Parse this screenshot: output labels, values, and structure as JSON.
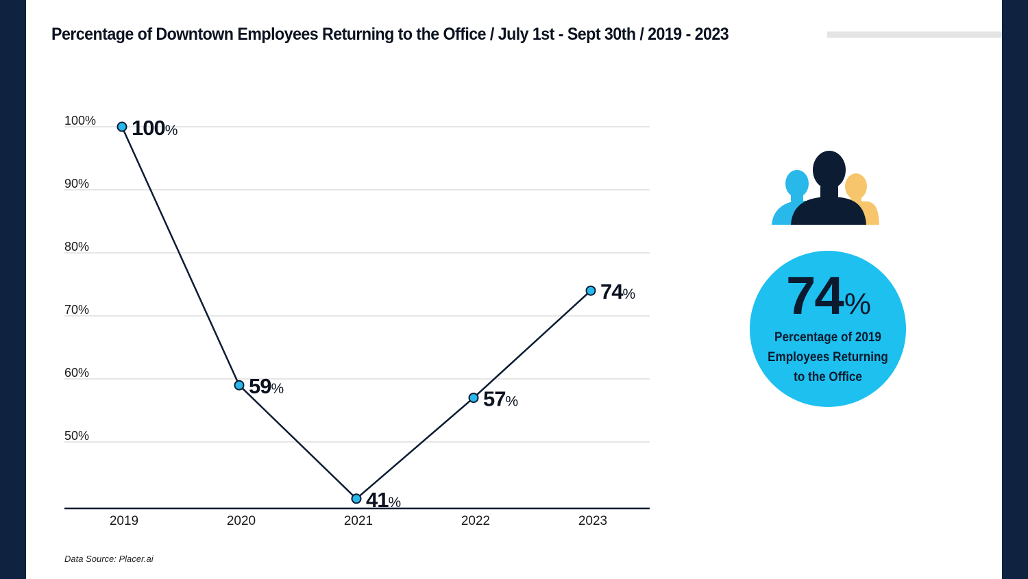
{
  "title": "Percentage of Downtown Employees Returning to the Office / July 1st - Sept 30th / 2019 - 2023",
  "source": "Data Source: Placer.ai",
  "chart_data": {
    "type": "line",
    "categories": [
      "2019",
      "2020",
      "2021",
      "2022",
      "2023"
    ],
    "series": [
      {
        "values": [
          100,
          59,
          41,
          57,
          74
        ]
      }
    ],
    "data_labels": [
      "100",
      "59",
      "41",
      "57",
      "74"
    ],
    "data_label_suffix": "%",
    "y_ticks": [
      "100%",
      "90%",
      "80%",
      "70%",
      "60%",
      "50%"
    ],
    "y_tick_values": [
      100,
      90,
      80,
      70,
      60,
      50
    ],
    "ylim": [
      39.5,
      100
    ],
    "grid": true,
    "colors": {
      "line": "#0c1c33",
      "marker": "#29b8ea",
      "grid": "#cccccc",
      "axis": "#0c1c33"
    }
  },
  "stat": {
    "value": "74",
    "unit": "%",
    "caption_lines": [
      "Percentage of 2019",
      "Employees Returning",
      "to the Office"
    ]
  },
  "icons": {
    "people": "people-group-icon"
  },
  "colors": {
    "background": "#0f2240",
    "panel": "#ffffff",
    "accent": "#1dc0ef",
    "person_left": "#29b8ea",
    "person_center": "#0c1c33",
    "person_right": "#f7c56b"
  }
}
